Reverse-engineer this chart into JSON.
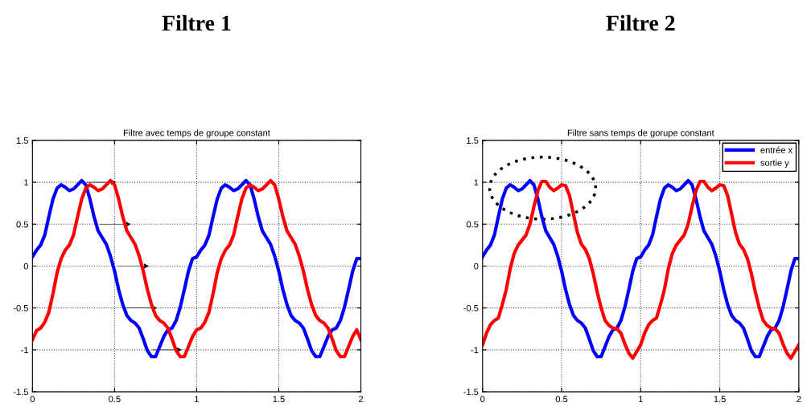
{
  "chart_data": [
    {
      "type": "line",
      "title": "Filtre 1",
      "subtitle": "Filtre avec temps de groupe constant",
      "x": [
        0,
        0.025,
        0.05,
        0.075,
        0.1,
        0.125,
        0.15,
        0.175,
        0.2,
        0.225,
        0.25,
        0.275,
        0.3,
        0.325,
        0.35,
        0.375,
        0.4,
        0.425,
        0.45,
        0.475,
        0.5,
        0.525,
        0.55,
        0.575,
        0.6,
        0.625,
        0.65,
        0.675,
        0.7,
        0.725,
        0.75,
        0.775,
        0.8,
        0.825,
        0.85,
        0.875,
        0.9,
        0.925,
        0.95,
        0.975,
        1,
        1.025,
        1.05,
        1.075,
        1.1,
        1.125,
        1.15,
        1.175,
        1.2,
        1.225,
        1.25,
        1.275,
        1.3,
        1.325,
        1.35,
        1.375,
        1.4,
        1.425,
        1.45,
        1.475,
        1.5,
        1.525,
        1.55,
        1.575,
        1.6,
        1.625,
        1.65,
        1.675,
        1.7,
        1.725,
        1.75,
        1.775,
        1.8,
        1.825,
        1.85,
        1.875,
        1.9,
        1.925,
        1.95,
        1.975,
        2
      ],
      "series": [
        {
          "color": "#0000ff",
          "values": [
            0.11,
            0.19,
            0.25,
            0.37,
            0.59,
            0.8,
            0.93,
            0.97,
            0.94,
            0.9,
            0.92,
            0.97,
            1.02,
            0.97,
            0.8,
            0.59,
            0.42,
            0.34,
            0.26,
            0.12,
            -0.06,
            -0.28,
            -0.46,
            -0.59,
            -0.65,
            -0.68,
            -0.74,
            -0.87,
            -1.01,
            -1.08,
            -1.08,
            -0.96,
            -0.84,
            -0.76,
            -0.74,
            -0.65,
            -0.49,
            -0.28,
            -0.06,
            0.09,
            0.11,
            0.19,
            0.25,
            0.37,
            0.59,
            0.8,
            0.93,
            0.97,
            0.94,
            0.9,
            0.92,
            0.97,
            1.02,
            0.97,
            0.8,
            0.59,
            0.42,
            0.34,
            0.26,
            0.12,
            -0.06,
            -0.28,
            -0.46,
            -0.59,
            -0.65,
            -0.68,
            -0.74,
            -0.87,
            -1.01,
            -1.08,
            -1.08,
            -0.96,
            -0.84,
            -0.76,
            -0.74,
            -0.65,
            -0.49,
            -0.28,
            -0.06,
            0.09,
            0.09
          ]
        },
        {
          "color": "#ff0000",
          "values": [
            -0.88,
            -0.77,
            -0.74,
            -0.67,
            -0.55,
            -0.33,
            -0.08,
            0.09,
            0.19,
            0.25,
            0.37,
            0.59,
            0.8,
            0.93,
            0.97,
            0.94,
            0.9,
            0.92,
            0.97,
            1.02,
            0.97,
            0.8,
            0.59,
            0.42,
            0.34,
            0.26,
            0.12,
            -0.06,
            -0.28,
            -0.46,
            -0.59,
            -0.65,
            -0.68,
            -0.74,
            -0.87,
            -1.01,
            -1.08,
            -1.08,
            -0.96,
            -0.84,
            -0.76,
            -0.74,
            -0.67,
            -0.55,
            -0.33,
            -0.08,
            0.09,
            0.19,
            0.25,
            0.37,
            0.59,
            0.8,
            0.93,
            0.97,
            0.94,
            0.9,
            0.92,
            0.97,
            1.02,
            0.97,
            0.8,
            0.59,
            0.42,
            0.34,
            0.26,
            0.12,
            -0.06,
            -0.28,
            -0.46,
            -0.59,
            -0.65,
            -0.68,
            -0.74,
            -0.87,
            -1.01,
            -1.08,
            -1.08,
            -0.96,
            -0.84,
            -0.76,
            -0.88
          ]
        }
      ],
      "xlim": [
        0,
        2
      ],
      "ylim": [
        -1.5,
        1.5
      ],
      "xticks": [
        0,
        0.5,
        1,
        1.5,
        2
      ],
      "yticks": [
        -1.5,
        -1,
        -0.5,
        0,
        0.5,
        1,
        1.5
      ],
      "grid": true,
      "line_style": "solid",
      "legend": false
    },
    {
      "type": "line",
      "title": "Filtre 2",
      "subtitle": "Filtre sans temps de gorupe constant",
      "x": [
        0,
        0.025,
        0.05,
        0.075,
        0.1,
        0.125,
        0.15,
        0.175,
        0.2,
        0.225,
        0.25,
        0.275,
        0.3,
        0.325,
        0.35,
        0.375,
        0.4,
        0.425,
        0.45,
        0.475,
        0.5,
        0.525,
        0.55,
        0.575,
        0.6,
        0.625,
        0.65,
        0.675,
        0.7,
        0.725,
        0.75,
        0.775,
        0.8,
        0.825,
        0.85,
        0.875,
        0.9,
        0.925,
        0.95,
        0.975,
        1,
        1.025,
        1.05,
        1.075,
        1.1,
        1.125,
        1.15,
        1.175,
        1.2,
        1.225,
        1.25,
        1.275,
        1.3,
        1.325,
        1.35,
        1.375,
        1.4,
        1.425,
        1.45,
        1.475,
        1.5,
        1.525,
        1.55,
        1.575,
        1.6,
        1.625,
        1.65,
        1.675,
        1.7,
        1.725,
        1.75,
        1.775,
        1.8,
        1.825,
        1.85,
        1.875,
        1.9,
        1.925,
        1.95,
        1.975,
        2
      ],
      "series": [
        {
          "name": "entrée x",
          "color": "#0000ff",
          "values": [
            0.11,
            0.19,
            0.25,
            0.37,
            0.59,
            0.8,
            0.93,
            0.97,
            0.94,
            0.9,
            0.92,
            0.97,
            1.02,
            0.97,
            0.8,
            0.59,
            0.42,
            0.34,
            0.26,
            0.12,
            -0.06,
            -0.28,
            -0.46,
            -0.59,
            -0.65,
            -0.68,
            -0.74,
            -0.87,
            -1.01,
            -1.08,
            -1.08,
            -0.96,
            -0.84,
            -0.76,
            -0.74,
            -0.65,
            -0.49,
            -0.28,
            -0.06,
            0.09,
            0.11,
            0.19,
            0.25,
            0.37,
            0.59,
            0.8,
            0.93,
            0.97,
            0.94,
            0.9,
            0.92,
            0.97,
            1.02,
            0.97,
            0.8,
            0.59,
            0.42,
            0.34,
            0.26,
            0.12,
            -0.06,
            -0.28,
            -0.46,
            -0.59,
            -0.65,
            -0.68,
            -0.74,
            -0.87,
            -1.01,
            -1.08,
            -1.08,
            -0.96,
            -0.84,
            -0.76,
            -0.74,
            -0.65,
            -0.49,
            -0.28,
            -0.06,
            0.09,
            0.09
          ]
        },
        {
          "name": "sortie y",
          "color": "#ff0000",
          "values": [
            -0.94,
            -0.8,
            -0.7,
            -0.65,
            -0.62,
            -0.46,
            -0.28,
            -0.03,
            0.15,
            0.25,
            0.31,
            0.37,
            0.5,
            0.71,
            0.9,
            1.01,
            1.01,
            0.94,
            0.9,
            0.93,
            0.97,
            0.96,
            0.84,
            0.62,
            0.4,
            0.26,
            0.2,
            0.09,
            -0.09,
            -0.31,
            -0.5,
            -0.65,
            -0.71,
            -0.74,
            -0.75,
            -0.8,
            -0.93,
            -1.04,
            -1.1,
            -1.02,
            -0.94,
            -0.8,
            -0.7,
            -0.65,
            -0.62,
            -0.46,
            -0.28,
            -0.03,
            0.15,
            0.25,
            0.31,
            0.37,
            0.5,
            0.71,
            0.9,
            1.01,
            1.01,
            0.94,
            0.9,
            0.93,
            0.97,
            0.96,
            0.84,
            0.62,
            0.4,
            0.26,
            0.2,
            0.09,
            -0.09,
            -0.31,
            -0.5,
            -0.65,
            -0.71,
            -0.74,
            -0.75,
            -0.8,
            -0.93,
            -1.04,
            -1.1,
            -1.02,
            -0.94
          ]
        }
      ],
      "xlim": [
        0,
        2
      ],
      "ylim": [
        -1.5,
        1.5
      ],
      "xticks": [
        0,
        0.5,
        1,
        1.5,
        2
      ],
      "yticks": [
        -1.5,
        -1,
        -0.5,
        0,
        0.5,
        1,
        1.5
      ],
      "grid": true,
      "line_style": "solid",
      "legend": "top right"
    }
  ]
}
